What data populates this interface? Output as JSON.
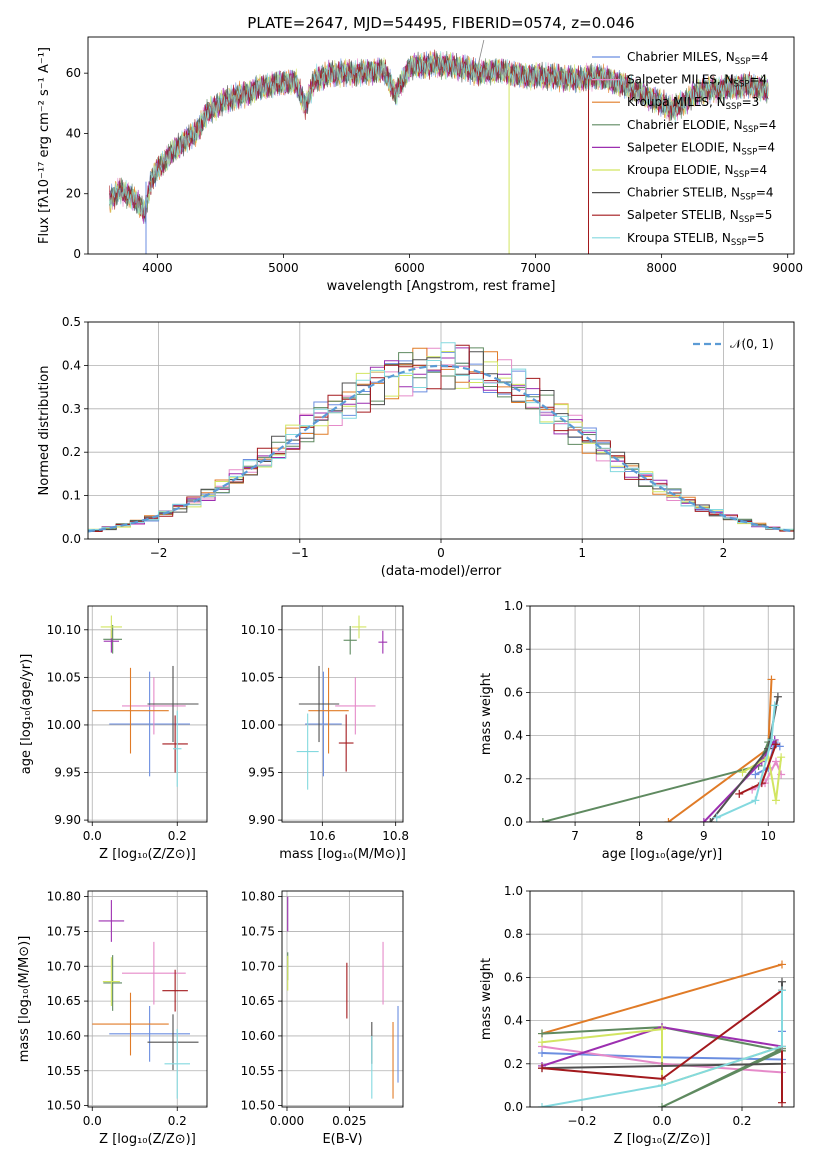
{
  "page": {
    "title": "PLATE=2647, MJD=54495, FIBERID=0574, z=0.046"
  },
  "series": [
    {
      "name": "Chabrier MILES",
      "nssp": "4",
      "color": "#6b8ee0"
    },
    {
      "name": "Salpeter MILES",
      "nssp": "4",
      "color": "#e58ac9"
    },
    {
      "name": "Kroupa MILES",
      "nssp": "3",
      "color": "#e07b27"
    },
    {
      "name": "Chabrier ELODIE",
      "nssp": "4",
      "color": "#5f8a60"
    },
    {
      "name": "Salpeter ELODIE",
      "nssp": "4",
      "color": "#9c2fb0"
    },
    {
      "name": "Kroupa ELODIE",
      "nssp": "4",
      "color": "#d2e562"
    },
    {
      "name": "Chabrier STELIB",
      "nssp": "4",
      "color": "#505050"
    },
    {
      "name": "Salpeter STELIB",
      "nssp": "5",
      "color": "#a3191d"
    },
    {
      "name": "Kroupa STELIB",
      "nssp": "5",
      "color": "#84d9df"
    }
  ],
  "chart_data": [
    {
      "id": "spectrum",
      "type": "line",
      "title": "PLATE=2647, MJD=54495, FIBERID=0574, z=0.046",
      "xlabel": "wavelength [Angstrom, rest frame]",
      "ylabel": "Flux [fλ10⁻¹⁷ erg cm⁻² s⁻¹ A⁻¹]",
      "xlim": [
        3450,
        9050
      ],
      "ylim": [
        0,
        72
      ],
      "xticks": [
        4000,
        5000,
        6000,
        7000,
        8000,
        9000
      ],
      "yticks": [
        0,
        20,
        40,
        60
      ],
      "legend_loc": "upper right",
      "nssp_label": "N_SSP",
      "grid": false,
      "envelope": [
        [
          3620,
          18
        ],
        [
          3700,
          21
        ],
        [
          3800,
          19
        ],
        [
          3900,
          14
        ],
        [
          3950,
          24
        ],
        [
          4000,
          28
        ],
        [
          4100,
          33
        ],
        [
          4200,
          37
        ],
        [
          4300,
          40
        ],
        [
          4400,
          47
        ],
        [
          4500,
          50
        ],
        [
          4600,
          52
        ],
        [
          4700,
          53
        ],
        [
          4800,
          55
        ],
        [
          4900,
          56
        ],
        [
          5000,
          57
        ],
        [
          5100,
          57
        ],
        [
          5175,
          49
        ],
        [
          5250,
          58
        ],
        [
          5400,
          60
        ],
        [
          5600,
          60
        ],
        [
          5800,
          61
        ],
        [
          5890,
          53
        ],
        [
          6000,
          62
        ],
        [
          6200,
          63
        ],
        [
          6400,
          62
        ],
        [
          6563,
          60
        ],
        [
          6700,
          61
        ],
        [
          6900,
          59
        ],
        [
          7100,
          59
        ],
        [
          7300,
          58
        ],
        [
          7500,
          59
        ],
        [
          7700,
          56
        ],
        [
          7900,
          52
        ],
        [
          8100,
          48
        ],
        [
          8300,
          54
        ],
        [
          8500,
          55
        ],
        [
          8700,
          56
        ],
        [
          8850,
          54
        ]
      ],
      "features": [
        {
          "name": "Kroupa ELODIE",
          "x": 6790,
          "ymin": 0,
          "ymax": 62
        },
        {
          "name": "Salpeter STELIB",
          "x": 7420,
          "ymin": 0,
          "ymax": 58
        },
        {
          "name": "Chabrier MILES",
          "x": 3910,
          "ymin": 0,
          "ymax": 24
        }
      ],
      "spike": {
        "x": 6590,
        "y": 71
      }
    },
    {
      "id": "residuals",
      "type": "histogram",
      "xlabel": "(data-model)/error",
      "ylabel": "Normed distribution",
      "xlim": [
        -2.5,
        2.5
      ],
      "ylim": [
        0,
        0.5
      ],
      "xticks": [
        -2,
        -1,
        0,
        1,
        2
      ],
      "yticks": [
        0.0,
        0.1,
        0.2,
        0.3,
        0.4,
        0.5
      ],
      "bin_width": 0.1,
      "legend": "𝒩(0, 1)",
      "reference": {
        "type": "normal",
        "mean": 0,
        "std": 1,
        "color": "#5b9bd5"
      },
      "grid": true
    },
    {
      "id": "age_vs_Z",
      "type": "scatter",
      "xlabel": "Z [log₁₀(Z/Z⊙)]",
      "ylabel": "age  [log₁₀(age/yr)]",
      "xlim": [
        -0.01,
        0.27
      ],
      "ylim": [
        9.898,
        10.125
      ],
      "xticks": [
        0.0,
        0.2
      ],
      "yticks": [
        9.9,
        9.95,
        10.0,
        10.05,
        10.1
      ],
      "grid": true,
      "points": [
        {
          "x": 0.135,
          "y": 10.001,
          "ex": 0.095,
          "ey": 0.055,
          "c": 0
        },
        {
          "x": 0.145,
          "y": 10.02,
          "ex": 0.075,
          "ey": 0.03,
          "c": 1
        },
        {
          "x": 0.09,
          "y": 10.015,
          "ex": 0.09,
          "ey": 0.045,
          "c": 2
        },
        {
          "x": 0.048,
          "y": 10.09,
          "ex": 0.022,
          "ey": 0.015,
          "c": 3
        },
        {
          "x": 0.045,
          "y": 10.088,
          "ex": 0.018,
          "ey": 0.012,
          "c": 4
        },
        {
          "x": 0.045,
          "y": 10.103,
          "ex": 0.025,
          "ey": 0.012,
          "c": 5
        },
        {
          "x": 0.19,
          "y": 10.022,
          "ex": 0.06,
          "ey": 0.04,
          "c": 6
        },
        {
          "x": 0.195,
          "y": 9.98,
          "ex": 0.03,
          "ey": 0.03,
          "c": 7
        },
        {
          "x": 0.2,
          "y": 9.975,
          "ex": 0.01,
          "ey": 0.04,
          "c": 8
        }
      ]
    },
    {
      "id": "age_vs_mass",
      "type": "scatter",
      "xlabel": "mass [log₁₀(M/M⊙)]",
      "ylabel": "",
      "xlim": [
        10.49,
        10.82
      ],
      "ylim": [
        9.898,
        10.125
      ],
      "xticks": [
        10.6,
        10.8
      ],
      "yticks": [
        9.9,
        9.95,
        10.0,
        10.05,
        10.1
      ],
      "grid": true,
      "points": [
        {
          "x": 10.603,
          "y": 10.001,
          "ex": 0.05,
          "ey": 0.055,
          "c": 0
        },
        {
          "x": 10.69,
          "y": 10.02,
          "ex": 0.055,
          "ey": 0.03,
          "c": 1
        },
        {
          "x": 10.617,
          "y": 10.015,
          "ex": 0.055,
          "ey": 0.045,
          "c": 2
        },
        {
          "x": 10.676,
          "y": 10.089,
          "ex": 0.018,
          "ey": 0.015,
          "c": 3
        },
        {
          "x": 10.765,
          "y": 10.087,
          "ex": 0.012,
          "ey": 0.012,
          "c": 4
        },
        {
          "x": 10.7,
          "y": 10.103,
          "ex": 0.02,
          "ey": 0.012,
          "c": 5
        },
        {
          "x": 10.591,
          "y": 10.022,
          "ex": 0.055,
          "ey": 0.04,
          "c": 6
        },
        {
          "x": 10.665,
          "y": 9.981,
          "ex": 0.02,
          "ey": 0.03,
          "c": 7
        },
        {
          "x": 10.56,
          "y": 9.972,
          "ex": 0.03,
          "ey": 0.04,
          "c": 8
        }
      ]
    },
    {
      "id": "mass_weight_vs_age",
      "type": "line",
      "xlabel": "age  [log₁₀(age/yr)]",
      "ylabel": "mass weight",
      "xlim": [
        6.3,
        10.4
      ],
      "ylim": [
        0,
        1
      ],
      "xticks": [
        7,
        8,
        9,
        10
      ],
      "yticks": [
        0.0,
        0.2,
        0.4,
        0.6,
        0.8,
        1.0
      ],
      "grid": true,
      "series": [
        {
          "c": 0,
          "points": [
            [
              9.8,
              0.22
            ],
            [
              10.0,
              0.25
            ],
            [
              10.1,
              0.37
            ],
            [
              10.18,
              0.35
            ]
          ]
        },
        {
          "c": 1,
          "points": [
            [
              9.75,
              0.15
            ],
            [
              9.95,
              0.18
            ],
            [
              10.12,
              0.28
            ],
            [
              10.2,
              0.22
            ]
          ]
        },
        {
          "c": 2,
          "points": [
            [
              8.45,
              0.0
            ],
            [
              10.0,
              0.34
            ],
            [
              10.05,
              0.66
            ]
          ]
        },
        {
          "c": 3,
          "points": [
            [
              6.5,
              0.0
            ],
            [
              9.85,
              0.26
            ],
            [
              10.0,
              0.37
            ]
          ]
        },
        {
          "c": 4,
          "points": [
            [
              9.0,
              0.0
            ],
            [
              9.9,
              0.28
            ],
            [
              10.1,
              0.38
            ]
          ]
        },
        {
          "c": 5,
          "points": [
            [
              9.6,
              0.23
            ],
            [
              10.0,
              0.3
            ],
            [
              10.12,
              0.1
            ],
            [
              10.2,
              0.3
            ]
          ]
        },
        {
          "c": 6,
          "points": [
            [
              9.1,
              0.0
            ],
            [
              10.0,
              0.34
            ],
            [
              10.15,
              0.58
            ]
          ]
        },
        {
          "c": 7,
          "points": [
            [
              9.55,
              0.13
            ],
            [
              9.9,
              0.18
            ],
            [
              10.12,
              0.36
            ]
          ]
        },
        {
          "c": 8,
          "points": [
            [
              9.2,
              0.02
            ],
            [
              9.8,
              0.1
            ],
            [
              10.05,
              0.38
            ],
            [
              10.1,
              0.54
            ]
          ]
        }
      ]
    },
    {
      "id": "mass_vs_Z",
      "type": "scatter",
      "xlabel": "Z [log₁₀(Z/Z⊙)]",
      "ylabel": "mass [log₁₀(M/M⊙)]",
      "xlim": [
        -0.01,
        0.27
      ],
      "ylim": [
        10.498,
        10.808
      ],
      "xticks": [
        0.0,
        0.2
      ],
      "yticks": [
        10.5,
        10.55,
        10.6,
        10.65,
        10.7,
        10.75,
        10.8
      ],
      "grid": true,
      "points": [
        {
          "x": 0.135,
          "y": 10.603,
          "ex": 0.095,
          "ey": 0.04,
          "c": 0
        },
        {
          "x": 0.145,
          "y": 10.69,
          "ex": 0.075,
          "ey": 0.045,
          "c": 1
        },
        {
          "x": 0.09,
          "y": 10.617,
          "ex": 0.09,
          "ey": 0.045,
          "c": 2
        },
        {
          "x": 0.048,
          "y": 10.676,
          "ex": 0.022,
          "ey": 0.04,
          "c": 3
        },
        {
          "x": 0.045,
          "y": 10.765,
          "ex": 0.03,
          "ey": 0.03,
          "c": 4
        },
        {
          "x": 0.045,
          "y": 10.678,
          "ex": 0.02,
          "ey": 0.035,
          "c": 5
        },
        {
          "x": 0.19,
          "y": 10.591,
          "ex": 0.06,
          "ey": 0.04,
          "c": 6
        },
        {
          "x": 0.195,
          "y": 10.665,
          "ex": 0.03,
          "ey": 0.03,
          "c": 7
        },
        {
          "x": 0.2,
          "y": 10.56,
          "ex": 0.03,
          "ey": 0.05,
          "c": 8
        }
      ]
    },
    {
      "id": "mass_vs_EBV",
      "type": "scatter",
      "xlabel": "E(B-V)",
      "ylabel": "",
      "xlim": [
        -0.002,
        0.0465
      ],
      "ylim": [
        10.498,
        10.808
      ],
      "xticks": [
        0.0,
        0.025
      ],
      "xticklabels": [
        "0.000",
        "0.025"
      ],
      "yticks": [
        10.5,
        10.55,
        10.6,
        10.65,
        10.7,
        10.75,
        10.8
      ],
      "grid": true,
      "points": [
        {
          "x": 0.0445,
          "y": 10.588,
          "ex": 0,
          "ey": 0.055,
          "c": 0
        },
        {
          "x": 0.0385,
          "y": 10.69,
          "ex": 0,
          "ey": 0.045,
          "c": 1
        },
        {
          "x": 0.0425,
          "y": 10.565,
          "ex": 0,
          "ey": 0.055,
          "c": 2
        },
        {
          "x": 0.0003,
          "y": 10.7,
          "ex": 0,
          "ey": 0.02,
          "c": 3
        },
        {
          "x": 0.0003,
          "y": 10.775,
          "ex": 0,
          "ey": 0.025,
          "c": 4
        },
        {
          "x": 0.0003,
          "y": 10.69,
          "ex": 0,
          "ey": 0.025,
          "c": 5
        },
        {
          "x": 0.034,
          "y": 10.59,
          "ex": 0,
          "ey": 0.03,
          "c": 6
        },
        {
          "x": 0.024,
          "y": 10.665,
          "ex": 0,
          "ey": 0.04,
          "c": 7
        },
        {
          "x": 0.034,
          "y": 10.555,
          "ex": 0,
          "ey": 0.045,
          "c": 8
        }
      ]
    },
    {
      "id": "mass_weight_vs_Z",
      "type": "line",
      "xlabel": "Z [log₁₀(Z/Z⊙)]",
      "ylabel": "mass weight",
      "xlim": [
        -0.33,
        0.33
      ],
      "ylim": [
        0,
        1
      ],
      "xticks": [
        -0.2,
        0.0,
        0.2
      ],
      "yticks": [
        0.0,
        0.2,
        0.4,
        0.6,
        0.8,
        1.0
      ],
      "grid": true,
      "series": [
        {
          "c": 0,
          "points": [
            [
              -0.3,
              0.25
            ],
            [
              0.0,
              0.23
            ],
            [
              0.3,
              0.22
            ],
            [
              0.3,
              0.35
            ]
          ]
        },
        {
          "c": 1,
          "points": [
            [
              -0.3,
              0.28
            ],
            [
              0.0,
              0.2
            ],
            [
              0.3,
              0.16
            ]
          ]
        },
        {
          "c": 2,
          "points": [
            [
              -0.3,
              0.34
            ],
            [
              0.3,
              0.66
            ]
          ]
        },
        {
          "c": 3,
          "points": [
            [
              -0.3,
              0.34
            ],
            [
              0.0,
              0.37
            ],
            [
              0.3,
              0.26
            ],
            [
              0.0,
              0.0
            ],
            [
              0.3,
              0.27
            ]
          ]
        },
        {
          "c": 4,
          "points": [
            [
              -0.3,
              0.19
            ],
            [
              0.0,
              0.37
            ],
            [
              0.3,
              0.28
            ]
          ]
        },
        {
          "c": 5,
          "points": [
            [
              -0.3,
              0.3
            ],
            [
              0.0,
              0.36
            ],
            [
              0.0,
              0.1
            ],
            [
              0.3,
              0.28
            ]
          ]
        },
        {
          "c": 6,
          "points": [
            [
              -0.3,
              0.18
            ],
            [
              0.0,
              0.19
            ],
            [
              0.3,
              0.2
            ],
            [
              0.3,
              0.58
            ]
          ]
        },
        {
          "c": 7,
          "points": [
            [
              -0.3,
              0.18
            ],
            [
              0.0,
              0.13
            ],
            [
              0.3,
              0.54
            ],
            [
              0.3,
              0.02
            ]
          ]
        },
        {
          "c": 8,
          "points": [
            [
              -0.3,
              0.0
            ],
            [
              0.0,
              0.1
            ],
            [
              0.3,
              0.28
            ],
            [
              0.3,
              0.54
            ]
          ]
        }
      ]
    }
  ]
}
